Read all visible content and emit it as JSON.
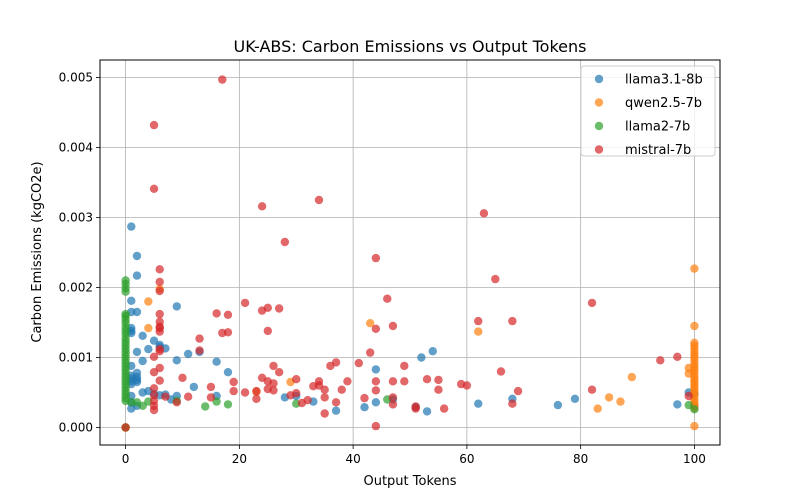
{
  "chart_data": {
    "type": "scatter",
    "title": "UK-ABS: Carbon Emissions vs Output Tokens",
    "xlabel": "Output Tokens",
    "ylabel": "Carbon Emissions (kgCO2e)",
    "xlim": [
      -4.5,
      104.5
    ],
    "ylim": [
      -0.00025,
      0.00525
    ],
    "xticks": [
      {
        "value": 0,
        "label": "0"
      },
      {
        "value": 20,
        "label": "20"
      },
      {
        "value": 40,
        "label": "40"
      },
      {
        "value": 60,
        "label": "60"
      },
      {
        "value": 80,
        "label": "80"
      },
      {
        "value": 100,
        "label": "100"
      }
    ],
    "yticks": [
      {
        "value": 0,
        "label": "0.000"
      },
      {
        "value": 0.001,
        "label": "0.001"
      },
      {
        "value": 0.002,
        "label": "0.002"
      },
      {
        "value": 0.003,
        "label": "0.003"
      },
      {
        "value": 0.004,
        "label": "0.004"
      },
      {
        "value": 0.005,
        "label": "0.005"
      }
    ],
    "grid": true,
    "legend_position": "top-right",
    "series": [
      {
        "name": "llama3.1-8b",
        "color": "#1f77b4",
        "points": [
          [
            1,
            0.00287
          ],
          [
            2,
            0.00245
          ],
          [
            2,
            0.00217
          ],
          [
            1,
            0.00181
          ],
          [
            1,
            0.00165
          ],
          [
            2,
            0.00165
          ],
          [
            1,
            0.00142
          ],
          [
            1,
            0.00138
          ],
          [
            1,
            0.00135
          ],
          [
            3,
            0.00131
          ],
          [
            5,
            0.00124
          ],
          [
            6,
            0.00118
          ],
          [
            6,
            0.00115
          ],
          [
            7,
            0.00113
          ],
          [
            9,
            0.00173
          ],
          [
            4,
            0.00112
          ],
          [
            2,
            0.00108
          ],
          [
            3,
            0.00095
          ],
          [
            1,
            0.00088
          ],
          [
            2,
            0.00078
          ],
          [
            1,
            0.00074
          ],
          [
            2,
            0.00072
          ],
          [
            1,
            0.0007
          ],
          [
            2,
            0.00068
          ],
          [
            1,
            0.00066
          ],
          [
            2,
            0.00065
          ],
          [
            1,
            0.00062
          ],
          [
            3,
            0.0005
          ],
          [
            4,
            0.00052
          ],
          [
            5,
            0.00048
          ],
          [
            6,
            0.00046
          ],
          [
            7,
            0.00047
          ],
          [
            1,
            0.00045
          ],
          [
            1,
            0.00036
          ],
          [
            1,
            0.00027
          ],
          [
            2,
            0.00031
          ],
          [
            11,
            0.00105
          ],
          [
            13,
            0.00108
          ],
          [
            16,
            0.00094
          ],
          [
            18,
            0.00079
          ],
          [
            12,
            0.00058
          ],
          [
            9,
            0.00096
          ],
          [
            8,
            0.0004
          ],
          [
            9,
            0.00045
          ],
          [
            16,
            0.00045
          ],
          [
            28,
            0.00043
          ],
          [
            30,
            0.00045
          ],
          [
            33,
            0.00037
          ],
          [
            37,
            0.00024
          ],
          [
            42,
            0.00029
          ],
          [
            44,
            0.00036
          ],
          [
            44,
            0.00083
          ],
          [
            47,
            0.0004
          ],
          [
            51,
            0.00029
          ],
          [
            52,
            0.001
          ],
          [
            54,
            0.00109
          ],
          [
            53,
            0.00023
          ],
          [
            62,
            0.00034
          ],
          [
            68,
            0.00041
          ],
          [
            76,
            0.00032
          ],
          [
            79,
            0.00041
          ],
          [
            97,
            0.00033
          ],
          [
            99,
            0.0005
          ],
          [
            100,
            0.00048
          ],
          [
            100,
            0.00031
          ]
        ]
      },
      {
        "name": "qwen2.5-7b",
        "color": "#ff7f0e",
        "points": [
          [
            4,
            0.0018
          ],
          [
            6,
            0.00198
          ],
          [
            4,
            0.00142
          ],
          [
            23,
            0.00051
          ],
          [
            29,
            0.00065
          ],
          [
            43,
            0.00149
          ],
          [
            62,
            0.00137
          ],
          [
            83,
            0.00027
          ],
          [
            85,
            0.00043
          ],
          [
            87,
            0.00037
          ],
          [
            89,
            0.00072
          ],
          [
            99,
            0.00085
          ],
          [
            99,
            0.00077
          ],
          [
            100,
            0.00227
          ],
          [
            100,
            0.00145
          ],
          [
            100,
            0.00121
          ],
          [
            100,
            0.00117
          ],
          [
            100,
            0.00113
          ],
          [
            100,
            0.00108
          ],
          [
            100,
            0.00104
          ],
          [
            100,
            0.001
          ],
          [
            100,
            0.00095
          ],
          [
            100,
            0.0009
          ],
          [
            100,
            0.00086
          ],
          [
            100,
            0.00082
          ],
          [
            100,
            0.00078
          ],
          [
            100,
            0.00073
          ],
          [
            100,
            0.00069
          ],
          [
            100,
            0.00065
          ],
          [
            100,
            0.00061
          ],
          [
            100,
            0.00057
          ],
          [
            100,
            0.00053
          ],
          [
            100,
            0.00049
          ],
          [
            100,
            0.00045
          ],
          [
            100,
            0.0004
          ],
          [
            100,
            0.00036
          ],
          [
            100,
            0.00032
          ],
          [
            100,
            0.00028
          ],
          [
            100,
            2e-05
          ],
          [
            0,
            0.0
          ]
        ]
      },
      {
        "name": "llama2-7b",
        "color": "#2ca02c",
        "points": [
          [
            0,
            0.0021
          ],
          [
            0,
            0.00205
          ],
          [
            0,
            0.00199
          ],
          [
            0,
            0.00194
          ],
          [
            0,
            0.00162
          ],
          [
            0,
            0.00159
          ],
          [
            0,
            0.00154
          ],
          [
            0,
            0.00149
          ],
          [
            0,
            0.00143
          ],
          [
            0,
            0.00138
          ],
          [
            0,
            0.00133
          ],
          [
            0,
            0.00127
          ],
          [
            0,
            0.00122
          ],
          [
            0,
            0.00117
          ],
          [
            0,
            0.00112
          ],
          [
            0,
            0.00107
          ],
          [
            0,
            0.00102
          ],
          [
            0,
            0.00097
          ],
          [
            0,
            0.00092
          ],
          [
            0,
            0.00087
          ],
          [
            0,
            0.00082
          ],
          [
            0,
            0.00077
          ],
          [
            0,
            0.00072
          ],
          [
            0,
            0.00067
          ],
          [
            0,
            0.00062
          ],
          [
            0,
            0.00057
          ],
          [
            0,
            0.00052
          ],
          [
            0,
            0.00047
          ],
          [
            0,
            0.00042
          ],
          [
            0,
            0.00038
          ],
          [
            1,
            0.00036
          ],
          [
            2,
            0.00036
          ],
          [
            3,
            0.00031
          ],
          [
            4,
            0.00037
          ],
          [
            9,
            0.00038
          ],
          [
            14,
            0.0003
          ],
          [
            16,
            0.00037
          ],
          [
            18,
            0.00033
          ],
          [
            30,
            0.00034
          ],
          [
            46,
            0.0004
          ],
          [
            99,
            0.00032
          ],
          [
            100,
            0.00026
          ],
          [
            0,
            0.0
          ]
        ]
      },
      {
        "name": "mistral-7b",
        "color": "#d62728",
        "points": [
          [
            17,
            0.00497
          ],
          [
            5,
            0.00432
          ],
          [
            5,
            0.00341
          ],
          [
            34,
            0.00325
          ],
          [
            24,
            0.00316
          ],
          [
            63,
            0.00306
          ],
          [
            28,
            0.00265
          ],
          [
            44,
            0.00242
          ],
          [
            6,
            0.00226
          ],
          [
            6,
            0.00208
          ],
          [
            65,
            0.00212
          ],
          [
            6,
            0.00195
          ],
          [
            21,
            0.00178
          ],
          [
            82,
            0.00178
          ],
          [
            46,
            0.00184
          ],
          [
            25,
            0.00171
          ],
          [
            27,
            0.0017
          ],
          [
            24,
            0.00167
          ],
          [
            16,
            0.00163
          ],
          [
            18,
            0.00161
          ],
          [
            6,
            0.00162
          ],
          [
            6,
            0.00151
          ],
          [
            6,
            0.00144
          ],
          [
            62,
            0.00152
          ],
          [
            68,
            0.00152
          ],
          [
            6,
            0.00137
          ],
          [
            6,
            0.00142
          ],
          [
            17,
            0.00135
          ],
          [
            18,
            0.00136
          ],
          [
            25,
            0.00138
          ],
          [
            44,
            0.00141
          ],
          [
            47,
            0.00145
          ],
          [
            13,
            0.00127
          ],
          [
            6,
            0.00112
          ],
          [
            6,
            0.00109
          ],
          [
            13,
            0.0011
          ],
          [
            43,
            0.00107
          ],
          [
            5,
            0.00101
          ],
          [
            94,
            0.00096
          ],
          [
            97,
            0.00101
          ],
          [
            37,
            0.00093
          ],
          [
            41,
            0.00092
          ],
          [
            36,
            0.00088
          ],
          [
            26,
            0.00088
          ],
          [
            49,
            0.00088
          ],
          [
            66,
            0.0008
          ],
          [
            5,
            0.00079
          ],
          [
            6,
            0.00085
          ],
          [
            27,
            0.00079
          ],
          [
            24,
            0.00071
          ],
          [
            10,
            0.00071
          ],
          [
            6,
            0.00067
          ],
          [
            19,
            0.00065
          ],
          [
            25,
            0.00066
          ],
          [
            26,
            0.00063
          ],
          [
            30,
            0.00069
          ],
          [
            34,
            0.00066
          ],
          [
            39,
            0.00066
          ],
          [
            44,
            0.00066
          ],
          [
            47,
            0.00066
          ],
          [
            49,
            0.00066
          ],
          [
            53,
            0.00069
          ],
          [
            55,
            0.00068
          ],
          [
            59,
            0.00062
          ],
          [
            60,
            0.0006
          ],
          [
            5,
            0.00056
          ],
          [
            15,
            0.00058
          ],
          [
            19,
            0.00052
          ],
          [
            21,
            0.0005
          ],
          [
            23,
            0.00052
          ],
          [
            25,
            0.00055
          ],
          [
            26,
            0.00053
          ],
          [
            30,
            0.00049
          ],
          [
            33,
            0.00059
          ],
          [
            34,
            0.0006
          ],
          [
            35,
            0.00054
          ],
          [
            38,
            0.00054
          ],
          [
            44,
            0.00053
          ],
          [
            55,
            0.00054
          ],
          [
            69,
            0.00052
          ],
          [
            82,
            0.00054
          ],
          [
            5,
            0.00046
          ],
          [
            7,
            0.00044
          ],
          [
            11,
            0.00044
          ],
          [
            15,
            0.00043
          ],
          [
            23,
            0.00041
          ],
          [
            29,
            0.00046
          ],
          [
            32,
            0.00039
          ],
          [
            35,
            0.00043
          ],
          [
            42,
            0.00042
          ],
          [
            47,
            0.00043
          ],
          [
            99,
            0.00045
          ],
          [
            5,
            0.00038
          ],
          [
            9,
            0.00036
          ],
          [
            31,
            0.00035
          ],
          [
            37,
            0.00036
          ],
          [
            47,
            0.00033
          ],
          [
            51,
            0.0003
          ],
          [
            68,
            0.00034
          ],
          [
            5,
            0.00031
          ],
          [
            51,
            0.00027
          ],
          [
            56,
            0.00027
          ],
          [
            35,
            0.0002
          ],
          [
            5,
            0.00025
          ],
          [
            44,
            2e-05
          ],
          [
            0,
            0.0
          ]
        ]
      }
    ]
  }
}
